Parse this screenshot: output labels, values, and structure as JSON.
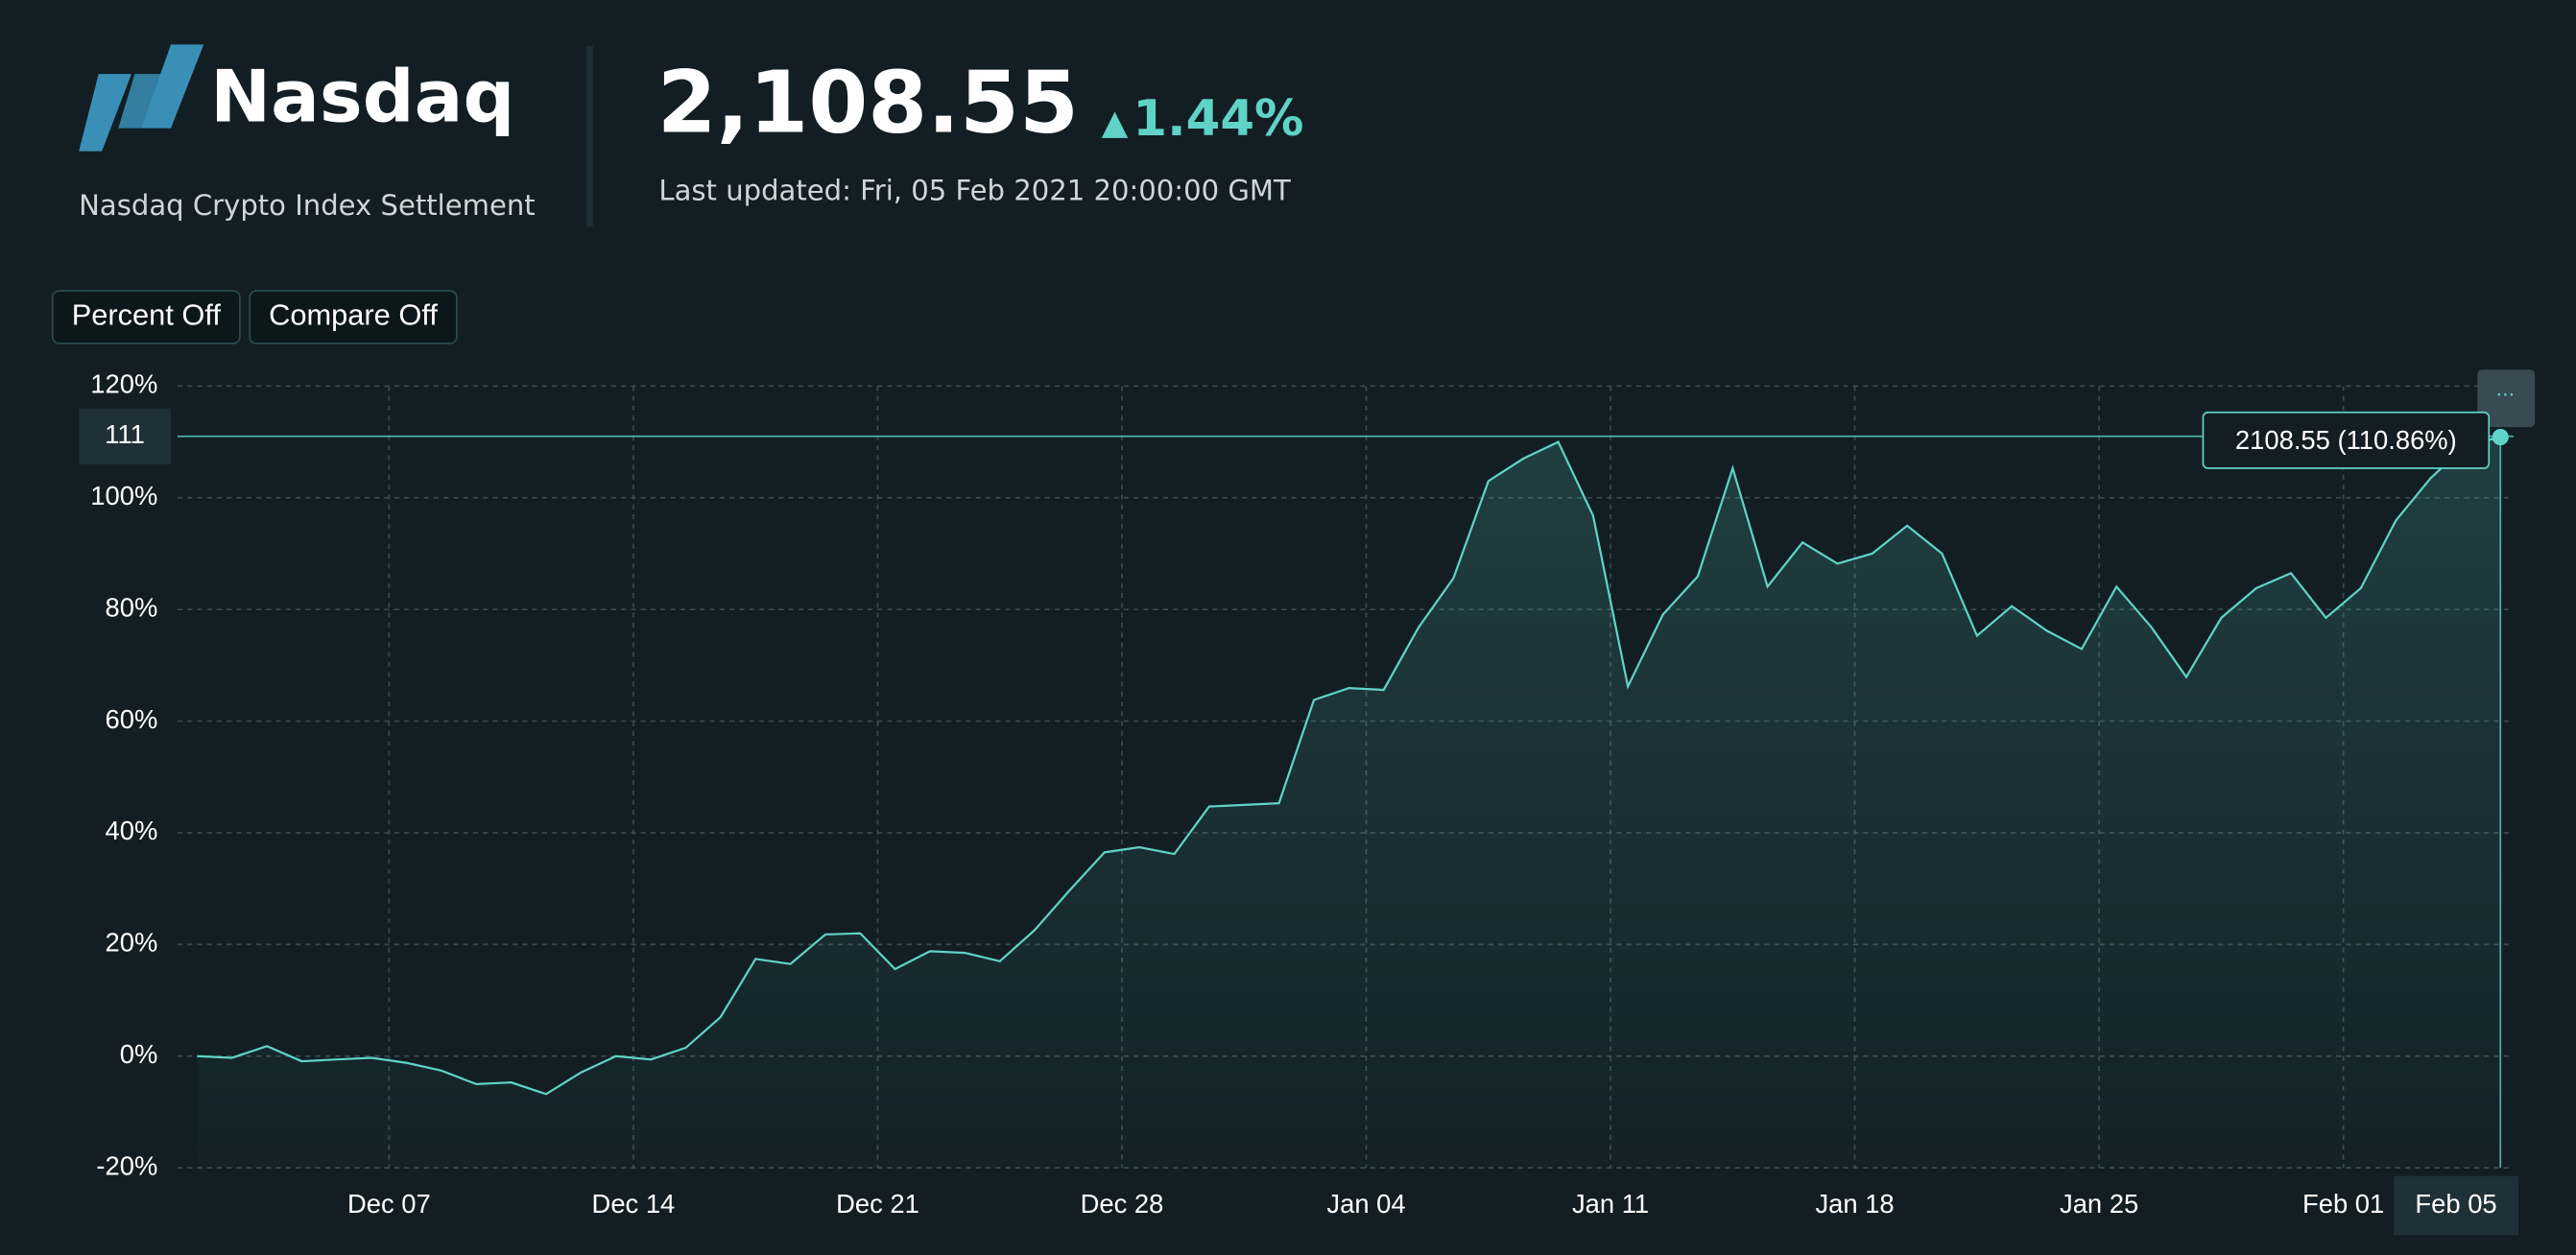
{
  "header": {
    "logo": "Nasdaq",
    "subtitle": "Nasdaq Crypto Index Settlement",
    "price": "2,108.55",
    "change": "1.44%",
    "updated": "Last updated: Fri, 05 Feb 2021 20:00:00 GMT"
  },
  "buttons": [
    "Percent Off",
    "Compare Off"
  ],
  "menu": "···",
  "chart_data": {
    "type": "area",
    "color": "#5fd3c6",
    "grid": true,
    "categories": [
      "Dec 01",
      "Dec 02",
      "Dec 03",
      "Dec 04",
      "Dec 05",
      "Dec 06",
      "Dec 07",
      "Dec 08",
      "Dec 09",
      "Dec 10",
      "Dec 11",
      "Dec 12",
      "Dec 13",
      "Dec 14",
      "Dec 15",
      "Dec 16",
      "Dec 17",
      "Dec 18",
      "Dec 19",
      "Dec 20",
      "Dec 21",
      "Dec 22",
      "Dec 23",
      "Dec 24",
      "Dec 25",
      "Dec 26",
      "Dec 27",
      "Dec 28",
      "Dec 29",
      "Dec 30",
      "Dec 31",
      "Jan 01",
      "Jan 02",
      "Jan 03",
      "Jan 04",
      "Jan 05",
      "Jan 06",
      "Jan 07",
      "Jan 08",
      "Jan 09",
      "Jan 10",
      "Jan 11",
      "Jan 12",
      "Jan 13",
      "Jan 14",
      "Jan 15",
      "Jan 16",
      "Jan 17",
      "Jan 18",
      "Jan 19",
      "Jan 20",
      "Jan 21",
      "Jan 22",
      "Jan 23",
      "Jan 24",
      "Jan 25",
      "Jan 26",
      "Jan 27",
      "Jan 28",
      "Jan 29",
      "Jan 30",
      "Jan 31",
      "Feb 01",
      "Feb 02",
      "Feb 03",
      "Feb 04",
      "Feb 05"
    ],
    "values": [
      0,
      -0.3,
      1.8,
      -0.9,
      -0.6,
      -0.3,
      -1.2,
      -2.6,
      -5,
      -4.7,
      -6.8,
      -2.9,
      0,
      -0.6,
      1.5,
      7,
      17.4,
      16.5,
      21.8,
      22,
      15.6,
      18.8,
      18.5,
      17,
      22.6,
      29.7,
      36.5,
      37.4,
      36.2,
      44.7,
      45,
      45.3,
      63.8,
      65.9,
      65.6,
      76.8,
      85.6,
      103,
      107,
      110,
      96.8,
      66.2,
      79.1,
      85.9,
      105.3,
      84.1,
      92,
      88.2,
      90,
      95,
      90,
      75.3,
      80.6,
      76.2,
      72.9,
      84.1,
      76.8,
      67.9,
      78.5,
      83.8,
      86.5,
      78.5,
      83.8,
      95.9,
      103.5,
      109.4,
      110.86
    ],
    "ylim": [
      -20,
      120
    ],
    "yticks": [
      {
        "value": -20,
        "label": "-20%"
      },
      {
        "value": 0,
        "label": "0%"
      },
      {
        "value": 20,
        "label": "20%"
      },
      {
        "value": 40,
        "label": "40%"
      },
      {
        "value": 60,
        "label": "60%"
      },
      {
        "value": 80,
        "label": "80%"
      },
      {
        "value": 100,
        "label": "100%"
      },
      {
        "value": 120,
        "label": "120%"
      }
    ],
    "xticks": [
      "Dec 07",
      "Dec 14",
      "Dec 21",
      "Dec 28",
      "Jan 04",
      "Jan 11",
      "Jan 18",
      "Jan 25",
      "Feb 01"
    ],
    "crosshair": {
      "value": 111,
      "x_label": "Feb 05",
      "tooltip": "2108.55 (110.86%)"
    }
  }
}
